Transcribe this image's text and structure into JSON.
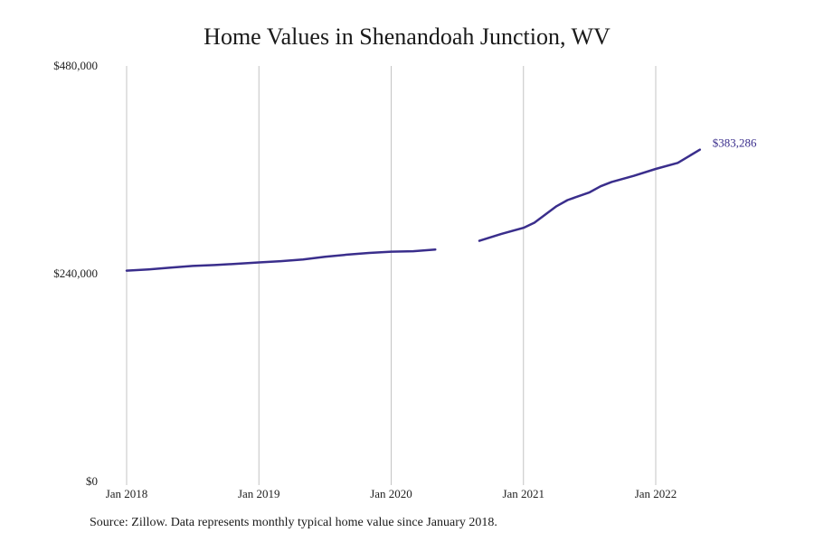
{
  "chart_data": {
    "type": "line",
    "title": "Home Values in Shenandoah Junction, WV",
    "xlabel": "",
    "ylabel": "",
    "ylim": [
      0,
      480000
    ],
    "y_ticks": [
      0,
      240000,
      480000
    ],
    "y_tick_labels": [
      "$0",
      "$240,000",
      "$480,000"
    ],
    "x_ticks": [
      "2018-01",
      "2019-01",
      "2020-01",
      "2021-01",
      "2022-01"
    ],
    "x_tick_labels": [
      "Jan 2018",
      "Jan 2019",
      "Jan 2020",
      "Jan 2021",
      "Jan 2022"
    ],
    "grid": "vertical",
    "line_color": "#3a2e8c",
    "series": [
      {
        "segments": [
          [
            [
              "2018-01",
              243500
            ],
            [
              "2018-03",
              245000
            ],
            [
              "2018-05",
              247000
            ],
            [
              "2018-07",
              249000
            ],
            [
              "2018-09",
              250000
            ],
            [
              "2018-11",
              251500
            ],
            [
              "2019-01",
              253000
            ],
            [
              "2019-03",
              254500
            ],
            [
              "2019-05",
              256500
            ],
            [
              "2019-07",
              259500
            ],
            [
              "2019-09",
              262000
            ],
            [
              "2019-11",
              264000
            ],
            [
              "2020-01",
              265500
            ],
            [
              "2020-03",
              266000
            ],
            [
              "2020-05",
              268000
            ]
          ],
          [
            [
              "2020-09",
              278000
            ],
            [
              "2020-11",
              286000
            ],
            [
              "2021-01",
              293000
            ],
            [
              "2021-02",
              299000
            ],
            [
              "2021-04",
              318000
            ],
            [
              "2021-05",
              325000
            ],
            [
              "2021-07",
              334000
            ],
            [
              "2021-08",
              341000
            ],
            [
              "2021-09",
              346000
            ],
            [
              "2021-11",
              353000
            ],
            [
              "2022-01",
              361000
            ],
            [
              "2022-03",
              368000
            ],
            [
              "2022-05",
              383286
            ]
          ]
        ]
      }
    ],
    "end_label": "$383,286"
  },
  "footer": {
    "source": "Source: Zillow. Data represents monthly typical home value since January 2018."
  }
}
